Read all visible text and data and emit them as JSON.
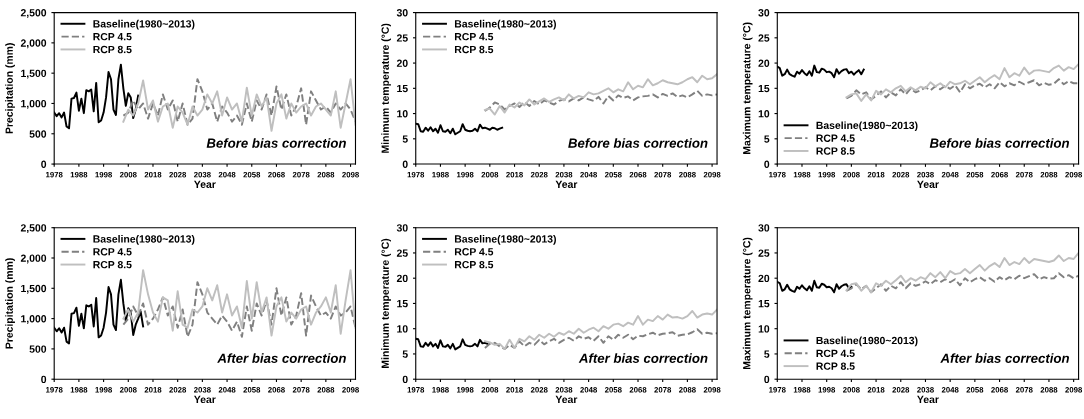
{
  "chart_data": [
    {
      "type": "line",
      "xlabel": "Year",
      "ylabel": "Precipitation (mm)",
      "xlim": [
        1978,
        2100
      ],
      "xticks": [
        1978,
        1988,
        1998,
        2008,
        2018,
        2028,
        2038,
        2048,
        2058,
        2068,
        2078,
        2088,
        2098
      ],
      "ylim": [
        0,
        2500
      ],
      "yticks": [
        0,
        500,
        {
          "value": 1000,
          "label": "1,000"
        },
        {
          "value": 1500,
          "label": "1,500"
        },
        {
          "value": 2000,
          "label": "2,000"
        },
        {
          "value": 2500,
          "label": "2,500"
        }
      ],
      "grid": false,
      "legend": "top left",
      "annotations": [
        "Before bias correction"
      ],
      "series": [
        {
          "name": "Baseline(1980~2013)",
          "color": "#000000",
          "line_style": "solid",
          "x": [
            1978,
            1979,
            1980,
            1981,
            1982,
            1983,
            1984,
            1985,
            1986,
            1987,
            1988,
            1989,
            1990,
            1991,
            1992,
            1993,
            1994,
            1995,
            1996,
            1997,
            1998,
            1999,
            2000,
            2001,
            2002,
            2003,
            2004,
            2005,
            2006,
            2007,
            2008,
            2009,
            2010,
            2011,
            2012
          ],
          "values": [
            850,
            790,
            840,
            770,
            850,
            620,
            590,
            1080,
            1090,
            1180,
            880,
            1080,
            840,
            1220,
            1200,
            1230,
            870,
            1340,
            690,
            720,
            850,
            1100,
            1520,
            1400,
            900,
            810,
            1400,
            1640,
            1250,
            960,
            1170,
            1100,
            760,
            900,
            1130
          ]
        },
        {
          "name": "RCP 4.5",
          "color": "#808080",
          "line_style": "dashed",
          "x": [
            2006,
            2008,
            2010,
            2012,
            2014,
            2016,
            2018,
            2020,
            2022,
            2024,
            2026,
            2028,
            2030,
            2032,
            2034,
            2036,
            2038,
            2040,
            2042,
            2044,
            2046,
            2048,
            2050,
            2052,
            2054,
            2056,
            2058,
            2060,
            2062,
            2064,
            2066,
            2068,
            2070,
            2072,
            2074,
            2076,
            2078,
            2080,
            2082,
            2084,
            2086,
            2088,
            2090,
            2092,
            2094,
            2096,
            2098,
            2100
          ],
          "values": [
            800,
            850,
            1050,
            900,
            1000,
            750,
            1000,
            800,
            1150,
            900,
            1050,
            700,
            1000,
            650,
            750,
            1400,
            1200,
            900,
            1000,
            700,
            950,
            850,
            700,
            800,
            650,
            1000,
            700,
            1050,
            900,
            1150,
            800,
            1280,
            900,
            1150,
            800,
            950,
            1250,
            650,
            1200,
            1050,
            900,
            950,
            850,
            1000,
            900,
            1000,
            900,
            700
          ]
        },
        {
          "name": "RCP 8.5",
          "color": "#bfbfbf",
          "line_style": "solid",
          "x": [
            2006,
            2008,
            2010,
            2012,
            2014,
            2016,
            2018,
            2020,
            2022,
            2024,
            2026,
            2028,
            2030,
            2032,
            2034,
            2036,
            2038,
            2040,
            2042,
            2044,
            2046,
            2048,
            2050,
            2052,
            2054,
            2056,
            2058,
            2060,
            2062,
            2064,
            2066,
            2068,
            2070,
            2072,
            2074,
            2076,
            2078,
            2080,
            2082,
            2084,
            2086,
            2088,
            2090,
            2092,
            2094,
            2096,
            2098,
            2100
          ],
          "values": [
            700,
            900,
            800,
            1000,
            1380,
            900,
            1050,
            700,
            950,
            1000,
            600,
            950,
            850,
            650,
            950,
            800,
            900,
            1150,
            1000,
            1200,
            800,
            1100,
            900,
            1000,
            700,
            1260,
            800,
            1150,
            950,
            1100,
            550,
            1000,
            1150,
            750,
            1000,
            850,
            950,
            1000,
            800,
            950,
            1000,
            900,
            800,
            1200,
            600,
            1000,
            1400,
            650
          ]
        }
      ]
    },
    {
      "type": "line",
      "xlabel": "Year",
      "ylabel": "Minimum temperature (°C)",
      "xlim": [
        1978,
        2100
      ],
      "xticks": [
        1978,
        1988,
        1998,
        2008,
        2018,
        2028,
        2038,
        2048,
        2058,
        2068,
        2078,
        2088,
        2098
      ],
      "ylim": [
        0,
        30
      ],
      "yticks": [
        0,
        5,
        10,
        15,
        20,
        25,
        30
      ],
      "grid": false,
      "legend": "top left",
      "annotations": [
        "Before bias correction"
      ],
      "series": [
        {
          "name": "Baseline(1980~2013)",
          "color": "#000000",
          "line_style": "solid",
          "x": [
            1978,
            1979,
            1980,
            1981,
            1982,
            1983,
            1984,
            1985,
            1986,
            1987,
            1988,
            1989,
            1990,
            1991,
            1992,
            1993,
            1994,
            1995,
            1996,
            1997,
            1998,
            1999,
            2000,
            2001,
            2002,
            2003,
            2004,
            2005,
            2006,
            2007,
            2008,
            2009,
            2010,
            2011,
            2012,
            2013
          ],
          "values": [
            8,
            7.9,
            6.5,
            6.4,
            7.2,
            6.6,
            7.3,
            6.5,
            7,
            6.2,
            7.7,
            6.5,
            6.4,
            6.8,
            6.1,
            7,
            5.9,
            6.2,
            6.5,
            7.9,
            6.8,
            6.6,
            6.5,
            6.6,
            7.0,
            6.5,
            7.8,
            7.1,
            7.2,
            7.0,
            6.8,
            7.2,
            7.1,
            6.8,
            7.0,
            7.2
          ]
        },
        {
          "name": "RCP 4.5",
          "color": "#808080",
          "line_style": "dashed",
          "x": [
            2006,
            2008,
            2010,
            2012,
            2014,
            2016,
            2018,
            2020,
            2022,
            2024,
            2026,
            2028,
            2030,
            2032,
            2034,
            2036,
            2038,
            2040,
            2042,
            2044,
            2046,
            2048,
            2050,
            2052,
            2054,
            2056,
            2058,
            2060,
            2062,
            2064,
            2066,
            2068,
            2070,
            2072,
            2074,
            2076,
            2078,
            2080,
            2082,
            2084,
            2086,
            2088,
            2090,
            2092,
            2094,
            2096,
            2098,
            2100
          ],
          "values": [
            10.5,
            11.2,
            12.2,
            11.8,
            10.8,
            11.5,
            12.0,
            11.3,
            12.3,
            11.5,
            12.5,
            11.8,
            12.6,
            12.2,
            11.8,
            12.5,
            12.8,
            12.4,
            13.0,
            12.6,
            13.2,
            12.8,
            12.5,
            13.3,
            12.0,
            13.5,
            12.6,
            13.6,
            13.1,
            13.4,
            12.6,
            13.2,
            13.4,
            13.5,
            13.8,
            13.2,
            13.9,
            13.5,
            14.0,
            13.3,
            13.6,
            13.2,
            13.8,
            14.5,
            13.5,
            13.8,
            13.6,
            13.8
          ]
        },
        {
          "name": "RCP 8.5",
          "color": "#bfbfbf",
          "line_style": "solid",
          "x": [
            2006,
            2008,
            2010,
            2012,
            2014,
            2016,
            2018,
            2020,
            2022,
            2024,
            2026,
            2028,
            2030,
            2032,
            2034,
            2036,
            2038,
            2040,
            2042,
            2044,
            2046,
            2048,
            2050,
            2052,
            2054,
            2056,
            2058,
            2060,
            2062,
            2064,
            2066,
            2068,
            2070,
            2072,
            2074,
            2076,
            2078,
            2080,
            2082,
            2084,
            2086,
            2088,
            2090,
            2092,
            2094,
            2096,
            2098,
            2100
          ],
          "values": [
            10.7,
            11.0,
            9.8,
            11.5,
            10.2,
            11.8,
            11.2,
            12.2,
            11.6,
            12.8,
            11.8,
            12.4,
            13.0,
            12.3,
            12.8,
            13.2,
            12.6,
            13.8,
            13.0,
            13.5,
            13.2,
            14.2,
            13.8,
            14.0,
            14.5,
            15.0,
            14.2,
            14.8,
            14.4,
            16.2,
            14.8,
            15.5,
            15.2,
            16.8,
            15.6,
            16.0,
            16.6,
            16.2,
            16.0,
            15.8,
            16.2,
            16.8,
            17.2,
            16.2,
            17.5,
            16.8,
            17.0,
            17.8
          ]
        }
      ]
    },
    {
      "type": "line",
      "xlabel": "Year",
      "ylabel": "Maximum temperature (°C)",
      "xlim": [
        1978,
        2100
      ],
      "xticks": [
        1978,
        1988,
        1998,
        2008,
        2018,
        2028,
        2038,
        2048,
        2058,
        2068,
        2078,
        2088,
        2098
      ],
      "ylim": [
        0,
        30
      ],
      "yticks": [
        0,
        5,
        10,
        15,
        20,
        25,
        30
      ],
      "grid": false,
      "legend": "bottom left",
      "annotations": [
        "Before bias correction"
      ],
      "series": [
        {
          "name": "Baseline(1980~2013)",
          "color": "#000000",
          "line_style": "solid",
          "x": [
            1978,
            1979,
            1980,
            1981,
            1982,
            1983,
            1984,
            1985,
            1986,
            1987,
            1988,
            1989,
            1990,
            1991,
            1992,
            1993,
            1994,
            1995,
            1996,
            1997,
            1998,
            1999,
            2000,
            2001,
            2002,
            2003,
            2004,
            2005,
            2006,
            2007,
            2008,
            2009,
            2010,
            2011,
            2012,
            2013
          ],
          "values": [
            19.3,
            19.0,
            17.5,
            17.8,
            18.7,
            17.8,
            17.5,
            17.3,
            18.3,
            17.9,
            18.6,
            18.0,
            17.6,
            18.4,
            17.5,
            19.5,
            18.2,
            18.1,
            18.9,
            18.7,
            18.2,
            18.3,
            18.0,
            17.2,
            18.8,
            17.9,
            18.4,
            18.7,
            18.8,
            18.0,
            18.3,
            17.7,
            18.2,
            18.6,
            17.8,
            18.7
          ]
        },
        {
          "name": "RCP 4.5",
          "color": "#808080",
          "line_style": "dashed",
          "x": [
            2006,
            2008,
            2010,
            2012,
            2014,
            2016,
            2018,
            2020,
            2022,
            2024,
            2026,
            2028,
            2030,
            2032,
            2034,
            2036,
            2038,
            2040,
            2042,
            2044,
            2046,
            2048,
            2050,
            2052,
            2054,
            2056,
            2058,
            2060,
            2062,
            2064,
            2066,
            2068,
            2070,
            2072,
            2074,
            2076,
            2078,
            2080,
            2082,
            2084,
            2086,
            2088,
            2090,
            2092,
            2094,
            2096,
            2098,
            2100
          ],
          "values": [
            13.0,
            13.5,
            14.6,
            13.8,
            14.2,
            12.8,
            13.5,
            14.4,
            13.2,
            14.2,
            13.6,
            14.8,
            13.8,
            15.0,
            14.2,
            14.6,
            15.2,
            14.6,
            15.4,
            14.8,
            15.5,
            14.9,
            15.6,
            14.2,
            15.8,
            15.0,
            15.6,
            15.9,
            15.2,
            15.8,
            15.0,
            16.2,
            15.4,
            16.0,
            15.6,
            16.3,
            15.8,
            16.2,
            16.6,
            15.6,
            16.1,
            15.7,
            15.9,
            16.8,
            15.8,
            16.4,
            16.0,
            16.0
          ]
        },
        {
          "name": "RCP 8.5",
          "color": "#bfbfbf",
          "line_style": "solid",
          "x": [
            2006,
            2008,
            2010,
            2012,
            2014,
            2016,
            2018,
            2020,
            2022,
            2024,
            2026,
            2028,
            2030,
            2032,
            2034,
            2036,
            2038,
            2040,
            2042,
            2044,
            2046,
            2048,
            2050,
            2052,
            2054,
            2056,
            2058,
            2060,
            2062,
            2064,
            2066,
            2068,
            2070,
            2072,
            2074,
            2076,
            2078,
            2080,
            2082,
            2084,
            2086,
            2088,
            2090,
            2092,
            2094,
            2096,
            2098,
            2100
          ],
          "values": [
            13.2,
            13.8,
            14.0,
            12.5,
            13.8,
            12.6,
            14.5,
            13.8,
            14.8,
            14.2,
            15.0,
            15.5,
            14.4,
            15.2,
            14.6,
            15.3,
            15.0,
            16.2,
            15.4,
            16.0,
            15.2,
            16.3,
            15.8,
            16.0,
            16.5,
            15.8,
            16.5,
            17.2,
            16.2,
            17.0,
            17.6,
            16.8,
            19.0,
            17.2,
            18.0,
            17.5,
            19.1,
            17.8,
            18.5,
            18.6,
            18.4,
            18.2,
            19.0,
            19.5,
            18.5,
            19.2,
            18.8,
            19.8
          ]
        }
      ]
    },
    {
      "type": "line",
      "xlabel": "Year",
      "ylabel": "Precipitation (mm)",
      "xlim": [
        1978,
        2100
      ],
      "xticks": [
        1978,
        1988,
        1998,
        2008,
        2018,
        2028,
        2038,
        2048,
        2058,
        2068,
        2078,
        2088,
        2098
      ],
      "ylim": [
        0,
        2500
      ],
      "yticks": [
        0,
        500,
        {
          "value": 1000,
          "label": "1,000"
        },
        {
          "value": 1500,
          "label": "1,500"
        },
        {
          "value": 2000,
          "label": "2,000"
        },
        {
          "value": 2500,
          "label": "2,500"
        }
      ],
      "grid": false,
      "legend": "top left",
      "annotations": [
        "After bias correction"
      ],
      "series": [
        {
          "name": "Baseline(1980~2013)",
          "color": "#000000",
          "line_style": "solid",
          "x": [
            1978,
            1979,
            1980,
            1981,
            1982,
            1983,
            1984,
            1985,
            1986,
            1987,
            1988,
            1989,
            1990,
            1991,
            1992,
            1993,
            1994,
            1995,
            1996,
            1997,
            1998,
            1999,
            2000,
            2001,
            2002,
            2003,
            2004,
            2005,
            2006,
            2007,
            2008,
            2009,
            2010,
            2011,
            2012,
            2013,
            2014
          ],
          "values": [
            850,
            790,
            840,
            770,
            850,
            620,
            590,
            1080,
            1090,
            1180,
            880,
            1080,
            840,
            1220,
            1200,
            1230,
            870,
            1340,
            690,
            720,
            850,
            1100,
            1520,
            1400,
            900,
            810,
            1400,
            1640,
            1250,
            960,
            1170,
            1100,
            730,
            900,
            1000,
            1120,
            870
          ]
        },
        {
          "name": "RCP 4.5",
          "color": "#808080",
          "line_style": "dashed",
          "x": [
            2006,
            2008,
            2010,
            2012,
            2014,
            2016,
            2018,
            2020,
            2022,
            2024,
            2026,
            2028,
            2030,
            2032,
            2034,
            2036,
            2038,
            2040,
            2042,
            2044,
            2046,
            2048,
            2050,
            2052,
            2054,
            2056,
            2058,
            2060,
            2062,
            2064,
            2066,
            2068,
            2070,
            2072,
            2074,
            2076,
            2078,
            2080,
            2082,
            2084,
            2086,
            2088,
            2090,
            2092,
            2094,
            2096,
            2098,
            2100
          ],
          "values": [
            900,
            1000,
            1200,
            1050,
            1250,
            900,
            1000,
            1150,
            1350,
            1050,
            1200,
            850,
            1150,
            700,
            900,
            1600,
            1400,
            1100,
            1000,
            900,
            1050,
            950,
            800,
            950,
            700,
            1200,
            800,
            1250,
            1050,
            1300,
            900,
            1500,
            1050,
            1350,
            900,
            1050,
            1420,
            720,
            1380,
            1200,
            1050,
            1100,
            1000,
            1200,
            1050,
            1100,
            1200,
            850
          ]
        },
        {
          "name": "RCP 8.5",
          "color": "#bfbfbf",
          "line_style": "solid",
          "x": [
            2006,
            2008,
            2010,
            2012,
            2014,
            2016,
            2018,
            2020,
            2022,
            2024,
            2026,
            2028,
            2030,
            2032,
            2034,
            2036,
            2038,
            2040,
            2042,
            2044,
            2046,
            2048,
            2050,
            2052,
            2054,
            2056,
            2058,
            2060,
            2062,
            2064,
            2066,
            2068,
            2070,
            2072,
            2074,
            2076,
            2078,
            2080,
            2082,
            2084,
            2086,
            2088,
            2090,
            2092,
            2094,
            2096,
            2098,
            2100
          ],
          "values": [
            1000,
            1150,
            950,
            1100,
            1800,
            1400,
            1100,
            950,
            1350,
            1300,
            800,
            1450,
            900,
            850,
            1150,
            1100,
            1200,
            1500,
            1300,
            1550,
            1100,
            1400,
            1050,
            1200,
            850,
            1620,
            1000,
            1600,
            1100,
            1350,
            720,
            1200,
            1350,
            950,
            1100,
            1000,
            1150,
            1200,
            900,
            1100,
            1200,
            1350,
            1100,
            1550,
            750,
            1300,
            1800,
            850
          ]
        }
      ]
    },
    {
      "type": "line",
      "xlabel": "Year",
      "ylabel": "Minimum temperature (°C)",
      "xlim": [
        1978,
        2100
      ],
      "xticks": [
        1978,
        1988,
        1998,
        2008,
        2018,
        2028,
        2038,
        2048,
        2058,
        2068,
        2078,
        2088,
        2098
      ],
      "ylim": [
        0,
        30
      ],
      "yticks": [
        0,
        5,
        10,
        15,
        20,
        25,
        30
      ],
      "grid": false,
      "legend": "top left",
      "annotations": [
        "After bias correction"
      ],
      "series": [
        {
          "name": "Baseline(1980~2013)",
          "color": "#000000",
          "line_style": "solid",
          "x": [
            1978,
            1979,
            1980,
            1981,
            1982,
            1983,
            1984,
            1985,
            1986,
            1987,
            1988,
            1989,
            1990,
            1991,
            1992,
            1993,
            1994,
            1995,
            1996,
            1997,
            1998,
            1999,
            2000,
            2001,
            2002,
            2003,
            2004,
            2005,
            2006,
            2007
          ],
          "values": [
            8,
            7.9,
            6.5,
            6.4,
            7.2,
            6.6,
            7.3,
            6.5,
            7,
            6.2,
            7.7,
            6.5,
            6.4,
            6.8,
            6.1,
            7,
            5.9,
            6.2,
            6.5,
            7.9,
            6.8,
            6.6,
            6.5,
            6.6,
            7.0,
            6.5,
            7.8,
            7.1,
            7.2,
            7.0
          ]
        },
        {
          "name": "RCP 4.5",
          "color": "#808080",
          "line_style": "dashed",
          "x": [
            2006,
            2008,
            2010,
            2012,
            2014,
            2016,
            2018,
            2020,
            2022,
            2024,
            2026,
            2028,
            2030,
            2032,
            2034,
            2036,
            2038,
            2040,
            2042,
            2044,
            2046,
            2048,
            2050,
            2052,
            2054,
            2056,
            2058,
            2060,
            2062,
            2064,
            2066,
            2068,
            2070,
            2072,
            2074,
            2076,
            2078,
            2080,
            2082,
            2084,
            2086,
            2088,
            2090,
            2092,
            2094,
            2096,
            2098,
            2100
          ],
          "values": [
            6.2,
            7.0,
            7.2,
            6.5,
            6.0,
            6.8,
            6.2,
            7.5,
            6.5,
            7.2,
            6.8,
            7.8,
            6.9,
            7.5,
            8.0,
            7.2,
            7.8,
            8.2,
            7.6,
            8.5,
            8.0,
            8.3,
            7.6,
            8.5,
            7.2,
            8.5,
            7.8,
            8.8,
            8.2,
            8.8,
            7.9,
            8.6,
            8.5,
            8.9,
            9.2,
            8.7,
            9.0,
            9.1,
            9.3,
            8.6,
            8.8,
            8.9,
            9.3,
            9.9,
            9.0,
            9.2,
            9.0,
            9.1
          ]
        },
        {
          "name": "RCP 8.5",
          "color": "#bfbfbf",
          "line_style": "solid",
          "x": [
            2006,
            2008,
            2010,
            2012,
            2014,
            2016,
            2018,
            2020,
            2022,
            2024,
            2026,
            2028,
            2030,
            2032,
            2034,
            2036,
            2038,
            2040,
            2042,
            2044,
            2046,
            2048,
            2050,
            2052,
            2054,
            2056,
            2058,
            2060,
            2062,
            2064,
            2066,
            2068,
            2070,
            2072,
            2074,
            2076,
            2078,
            2080,
            2082,
            2084,
            2086,
            2088,
            2090,
            2092,
            2094,
            2096,
            2098,
            2100
          ],
          "values": [
            7.5,
            7.3,
            6.8,
            7.0,
            6.0,
            7.8,
            6.2,
            8.0,
            7.5,
            8.5,
            7.8,
            8.8,
            8.2,
            9.0,
            8.4,
            9.2,
            8.8,
            9.5,
            9.0,
            10.0,
            9.2,
            9.8,
            10.2,
            9.5,
            10.5,
            10.0,
            10.8,
            11.0,
            10.5,
            11.2,
            10.8,
            12.5,
            10.8,
            11.8,
            11.5,
            12.5,
            11.8,
            12.8,
            12.2,
            12.3,
            12.0,
            12.5,
            13.5,
            12.2,
            12.8,
            13.0,
            12.8,
            13.8
          ]
        }
      ]
    },
    {
      "type": "line",
      "xlabel": "Year",
      "ylabel": "Maximum temperature (°C)",
      "xlim": [
        1978,
        2100
      ],
      "xticks": [
        1978,
        1988,
        1998,
        2008,
        2018,
        2028,
        2038,
        2048,
        2058,
        2068,
        2078,
        2088,
        2098
      ],
      "ylim": [
        0,
        30
      ],
      "yticks": [
        0,
        5,
        10,
        15,
        20,
        25,
        30
      ],
      "grid": false,
      "legend": "bottom left",
      "annotations": [
        "After bias correction"
      ],
      "series": [
        {
          "name": "Baseline(1980~2013)",
          "color": "#000000",
          "line_style": "solid",
          "x": [
            1978,
            1979,
            1980,
            1981,
            1982,
            1983,
            1984,
            1985,
            1986,
            1987,
            1988,
            1989,
            1990,
            1991,
            1992,
            1993,
            1994,
            1995,
            1996,
            1997,
            1998,
            1999,
            2000,
            2001,
            2002,
            2003,
            2004,
            2005,
            2006,
            2007,
            2008
          ],
          "values": [
            19.3,
            19.0,
            17.5,
            17.8,
            18.7,
            17.8,
            17.5,
            17.3,
            18.3,
            17.9,
            18.6,
            18.0,
            17.6,
            18.4,
            17.5,
            19.5,
            18.2,
            18.1,
            18.9,
            18.7,
            18.2,
            18.3,
            18.0,
            17.2,
            18.8,
            17.9,
            18.4,
            18.7,
            18.8,
            18.0,
            18.3
          ]
        },
        {
          "name": "RCP 4.5",
          "color": "#808080",
          "line_style": "dashed",
          "x": [
            2006,
            2008,
            2010,
            2012,
            2014,
            2016,
            2018,
            2020,
            2022,
            2024,
            2026,
            2028,
            2030,
            2032,
            2034,
            2036,
            2038,
            2040,
            2042,
            2044,
            2046,
            2048,
            2050,
            2052,
            2054,
            2056,
            2058,
            2060,
            2062,
            2064,
            2066,
            2068,
            2070,
            2072,
            2074,
            2076,
            2078,
            2080,
            2082,
            2084,
            2086,
            2088,
            2090,
            2092,
            2094,
            2096,
            2098,
            2100
          ],
          "values": [
            17.5,
            18.0,
            18.8,
            17.8,
            18.5,
            17.2,
            18.0,
            18.8,
            17.5,
            18.5,
            18.0,
            19.2,
            18.0,
            19.0,
            18.5,
            18.8,
            19.4,
            18.8,
            19.6,
            19.2,
            19.8,
            19.2,
            19.8,
            18.6,
            20.0,
            19.2,
            19.8,
            20.2,
            19.5,
            20.0,
            19.3,
            20.2,
            19.6,
            20.2,
            19.8,
            20.5,
            20.0,
            20.4,
            20.8,
            19.8,
            20.2,
            19.9,
            20.0,
            21.0,
            20.2,
            20.6,
            20.0,
            20.5
          ]
        },
        {
          "name": "RCP 8.5",
          "color": "#bfbfbf",
          "line_style": "solid",
          "x": [
            2006,
            2008,
            2010,
            2012,
            2014,
            2016,
            2018,
            2020,
            2022,
            2024,
            2026,
            2028,
            2030,
            2032,
            2034,
            2036,
            2038,
            2040,
            2042,
            2044,
            2046,
            2048,
            2050,
            2052,
            2054,
            2056,
            2058,
            2060,
            2062,
            2064,
            2066,
            2068,
            2070,
            2072,
            2074,
            2076,
            2078,
            2080,
            2082,
            2084,
            2086,
            2088,
            2090,
            2092,
            2094,
            2096,
            2098,
            2100
          ],
          "values": [
            17.6,
            18.8,
            19.0,
            17.5,
            18.5,
            17.2,
            19.0,
            18.5,
            19.5,
            18.8,
            19.6,
            20.5,
            19.2,
            20.0,
            19.5,
            20.2,
            19.8,
            21.0,
            20.2,
            21.2,
            20.0,
            21.4,
            20.8,
            21.0,
            21.8,
            21.0,
            21.8,
            22.6,
            21.5,
            22.4,
            23.0,
            22.2,
            24.0,
            22.6,
            23.2,
            22.8,
            24.0,
            23.0,
            23.8,
            23.6,
            23.4,
            23.2,
            23.5,
            24.5,
            23.4,
            24.0,
            23.8,
            25.0
          ]
        }
      ]
    }
  ]
}
